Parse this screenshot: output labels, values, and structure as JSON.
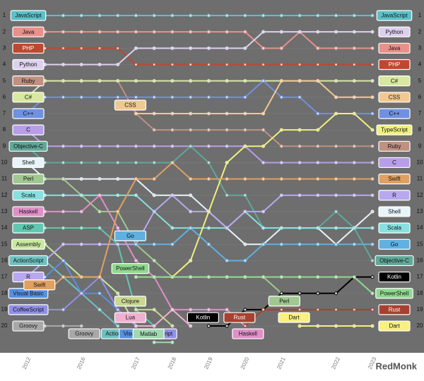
{
  "chart_data": {
    "type": "bump",
    "brand": "RedMonk",
    "categories": [
      "2012",
      null,
      null,
      "2016",
      null,
      null,
      "2017",
      null,
      "2018",
      null,
      "2019",
      null,
      "2020",
      null,
      "2021",
      null,
      null,
      "2022",
      null,
      "2023"
    ],
    "ylim": [
      0.05,
      21.5
    ],
    "yticks": [
      1,
      2,
      3,
      4,
      5,
      6,
      7,
      8,
      9,
      10,
      11,
      12,
      13,
      14,
      15,
      16,
      17,
      18,
      19,
      20
    ],
    "grid": true,
    "series": [
      {
        "name": "JavaScript",
        "color": "#5bc0c8",
        "values": [
          1,
          1,
          1,
          1,
          1,
          1,
          1,
          1,
          1,
          1,
          1,
          1,
          1,
          1,
          1,
          1,
          1,
          1,
          1,
          1
        ]
      },
      {
        "name": "Java",
        "color": "#e8908a",
        "values": [
          2,
          2,
          2,
          2,
          2,
          2,
          2,
          2,
          2,
          2,
          2,
          2,
          2,
          3,
          3,
          2,
          3,
          3,
          3,
          3
        ]
      },
      {
        "name": "PHP",
        "color": "#c0472f",
        "values": [
          3,
          3,
          3,
          3,
          3,
          3,
          4,
          4,
          4,
          4,
          4,
          4,
          4,
          4,
          4,
          4,
          4,
          4,
          4,
          4
        ]
      },
      {
        "name": "Python",
        "color": "#ddd0ee",
        "values": [
          4,
          4,
          4,
          4,
          4,
          4,
          3,
          3,
          3,
          3,
          3,
          3,
          3,
          2,
          2,
          2,
          2,
          2,
          2,
          2
        ]
      },
      {
        "name": "Ruby",
        "color": "#c09080",
        "values": [
          5,
          5,
          5,
          5,
          5,
          5,
          7,
          8,
          8,
          8,
          8,
          8,
          8,
          8,
          9,
          9,
          9,
          9,
          9,
          9
        ]
      },
      {
        "name": "C#",
        "color": "#d8e8a0",
        "values": [
          6,
          5,
          5,
          5,
          5,
          5,
          5,
          5,
          5,
          5,
          5,
          5,
          5,
          5,
          5,
          5,
          5,
          5,
          5,
          5
        ]
      },
      {
        "name": "C++",
        "color": "#7090e0",
        "values": [
          7,
          6,
          6,
          6,
          6,
          6,
          6,
          6,
          6,
          6,
          6,
          6,
          6,
          5,
          6,
          6,
          7,
          7,
          7,
          7
        ]
      },
      {
        "name": "C",
        "color": "#b89ee8",
        "values": [
          8,
          9,
          9,
          9,
          9,
          9,
          9,
          9,
          9,
          9,
          9,
          9,
          9,
          10,
          10,
          10,
          10,
          10,
          10,
          10
        ]
      },
      {
        "name": "Objective-C",
        "color": "#60a898",
        "values": [
          9,
          10,
          10,
          10,
          10,
          10,
          10,
          10,
          10,
          9,
          10,
          12,
          12,
          14,
          14,
          14,
          14,
          13,
          14,
          16
        ]
      },
      {
        "name": "Shell",
        "color": "#e8f4fa",
        "values": [
          10,
          11,
          11,
          11,
          11,
          11,
          11,
          12,
          12,
          12,
          13,
          14,
          15,
          15,
          14,
          14,
          14,
          15,
          14,
          13
        ]
      },
      {
        "name": "Perl",
        "color": "#a0c890",
        "values": [
          11,
          11,
          11,
          12,
          13,
          13,
          15,
          16,
          17,
          17,
          17,
          17,
          17,
          17,
          18,
          null,
          null,
          null,
          null,
          null
        ]
      },
      {
        "name": "Scala",
        "color": "#88e0e0",
        "values": [
          12,
          12,
          12,
          12,
          12,
          12,
          12,
          13,
          14,
          14,
          14,
          14,
          13,
          14,
          14,
          14,
          14,
          14,
          14,
          14
        ]
      },
      {
        "name": "Haskell",
        "color": "#e090c8",
        "values": [
          13,
          13,
          13,
          13,
          12,
          14,
          16,
          17,
          19,
          19,
          19,
          19,
          20,
          null,
          null,
          null,
          null,
          null,
          null,
          null
        ]
      },
      {
        "name": "ASP",
        "color": "#60c8b0",
        "values": [
          14,
          14,
          14,
          14,
          14,
          15,
          19,
          20,
          null,
          null,
          null,
          null,
          null,
          null,
          null,
          null,
          null,
          null,
          null,
          null
        ]
      },
      {
        "name": "Assembly",
        "color": "#c8e8a0",
        "values": [
          15,
          15,
          16,
          17,
          17,
          18,
          20,
          null,
          null,
          null,
          null,
          null,
          null,
          null,
          null,
          null,
          null,
          null,
          null,
          null
        ]
      },
      {
        "name": "ActionScript",
        "color": "#70c0c0",
        "values": [
          16,
          16,
          17,
          18,
          19,
          20,
          null,
          null,
          null,
          null,
          null,
          null,
          null,
          null,
          null,
          null,
          null,
          null,
          null,
          null
        ]
      },
      {
        "name": "R",
        "color": "#b8a8f0",
        "values": [
          17,
          16,
          15,
          15,
          15,
          15,
          15,
          13,
          12,
          13,
          13,
          14,
          13,
          13,
          12,
          12,
          12,
          12,
          12,
          12
        ]
      },
      {
        "name": "Visual Basic",
        "color": "#5890e0",
        "values": [
          18,
          17,
          16,
          18,
          18,
          19,
          20,
          null,
          null,
          null,
          null,
          null,
          null,
          null,
          null,
          null,
          null,
          null,
          null,
          null
        ]
      },
      {
        "name": "CoffeeScript",
        "color": "#9090e8",
        "values": [
          19,
          19,
          19,
          18,
          17,
          19,
          20,
          20,
          null,
          null,
          null,
          null,
          null,
          null,
          null,
          null,
          null,
          null,
          null,
          null
        ]
      },
      {
        "name": "Groovy",
        "color": "#a8a8a8",
        "values": [
          20,
          20,
          20,
          20,
          null,
          null,
          null,
          null,
          null,
          null,
          null,
          null,
          null,
          null,
          null,
          null,
          null,
          null,
          null,
          null
        ]
      },
      {
        "name": "CSS",
        "color": "#f0c890",
        "values": [
          null,
          null,
          null,
          null,
          null,
          null,
          7,
          7,
          7,
          7,
          7,
          7,
          7,
          7,
          5,
          5,
          5,
          6,
          6,
          6
        ]
      },
      {
        "name": "TypeScript",
        "color": "#f0f080",
        "values": [
          null,
          null,
          null,
          null,
          null,
          null,
          17,
          17,
          17,
          16,
          13,
          10,
          9,
          9,
          8,
          8,
          8,
          7,
          7,
          8
        ]
      },
      {
        "name": "Swift",
        "color": "#e0a060",
        "values": [
          null,
          18,
          17,
          17,
          17,
          13,
          11,
          11,
          10,
          11,
          11,
          11,
          11,
          11,
          11,
          11,
          11,
          11,
          11,
          11
        ]
      },
      {
        "name": "Go",
        "color": "#60b0e0",
        "values": [
          null,
          null,
          null,
          null,
          null,
          null,
          15,
          15,
          15,
          14,
          15,
          16,
          16,
          15,
          15,
          15,
          15,
          15,
          15,
          15
        ]
      },
      {
        "name": "Kotlin",
        "color": "#000000",
        "values": [
          null,
          null,
          null,
          null,
          null,
          null,
          null,
          null,
          null,
          null,
          20,
          20,
          19,
          19,
          18,
          18,
          18,
          18,
          17,
          17
        ]
      },
      {
        "name": "PowerShell",
        "color": "#90d890",
        "values": [
          null,
          null,
          null,
          null,
          null,
          null,
          17,
          17,
          17,
          17,
          17,
          17,
          17,
          17,
          17,
          17,
          17,
          17,
          17,
          18
        ]
      },
      {
        "name": "Rust",
        "color": "#a84030",
        "values": [
          null,
          null,
          null,
          null,
          null,
          null,
          null,
          null,
          null,
          null,
          null,
          null,
          20,
          19,
          19,
          19,
          19,
          19,
          19,
          19
        ]
      },
      {
        "name": "Dart",
        "color": "#f8f080",
        "values": [
          null,
          null,
          null,
          null,
          null,
          null,
          null,
          null,
          null,
          null,
          null,
          null,
          null,
          null,
          null,
          20,
          20,
          20,
          20,
          20
        ]
      },
      {
        "name": "Lua",
        "color": "#f0b0d0",
        "values": [
          null,
          null,
          null,
          null,
          null,
          null,
          20,
          20,
          19,
          20,
          null,
          null,
          null,
          null,
          null,
          null,
          null,
          null,
          null,
          null
        ]
      },
      {
        "name": "Clojure",
        "color": "#c8d890",
        "values": [
          null,
          null,
          null,
          null,
          null,
          null,
          19,
          19,
          20,
          null,
          null,
          null,
          null,
          null,
          null,
          null,
          null,
          null,
          null,
          null
        ]
      },
      {
        "name": "Matlab",
        "color": "#a0d8b0",
        "values": [
          null,
          null,
          null,
          null,
          null,
          null,
          null,
          21,
          21,
          null,
          null,
          null,
          null,
          null,
          null,
          null,
          null,
          null,
          null,
          null
        ]
      }
    ]
  }
}
